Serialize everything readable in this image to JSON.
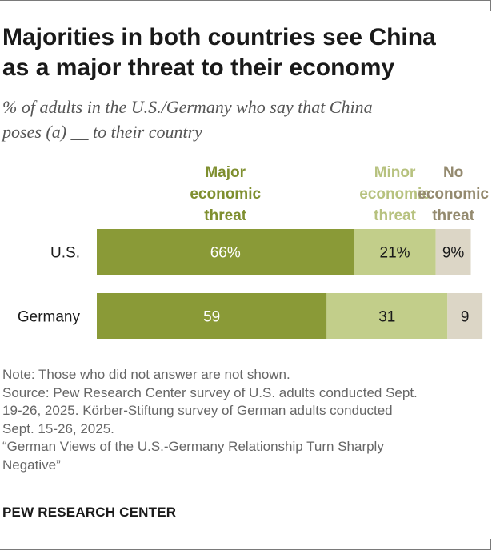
{
  "title_line1": "Majorities in both countries see China",
  "title_line2": "as a major threat to their economy",
  "subtitle_line1": "% of adults in the U.S./Germany who say that China",
  "subtitle_line2": "poses (a) __ to their country",
  "colors": {
    "major": "#8a9a37",
    "minor": "#c2ce8a",
    "none": "#dcd6c6",
    "major_legend": "#7f8f2f",
    "minor_legend": "#b7c27f",
    "none_legend": "#948a6f"
  },
  "chart_data": {
    "type": "bar",
    "orientation": "horizontal",
    "stacked": true,
    "categories": [
      "U.S.",
      "Germany"
    ],
    "series": [
      {
        "name": "Major economic threat",
        "legend_lines": [
          "Major",
          "economic",
          "threat"
        ],
        "values": [
          66,
          59
        ],
        "labels": [
          "66%",
          "59"
        ]
      },
      {
        "name": "Minor economic threat",
        "legend_lines": [
          "Minor",
          "economic",
          "threat"
        ],
        "values": [
          21,
          31
        ],
        "labels": [
          "21%",
          "31"
        ]
      },
      {
        "name": "No economic threat",
        "legend_lines": [
          "No",
          "economic",
          "threat"
        ],
        "values": [
          9,
          9
        ],
        "labels": [
          "9%",
          "9"
        ]
      }
    ]
  },
  "note": {
    "line1": "Note: Those who did not answer are not shown.",
    "line2": "Source: Pew Research Center survey of U.S. adults conducted Sept.",
    "line3": "19-26, 2025. Körber-Stiftung survey of German adults conducted",
    "line4": "Sept. 15-26, 2025.",
    "line5": "“German Views of the U.S.-Germany Relationship Turn Sharply",
    "line6": "Negative”"
  },
  "brand": "PEW RESEARCH CENTER"
}
